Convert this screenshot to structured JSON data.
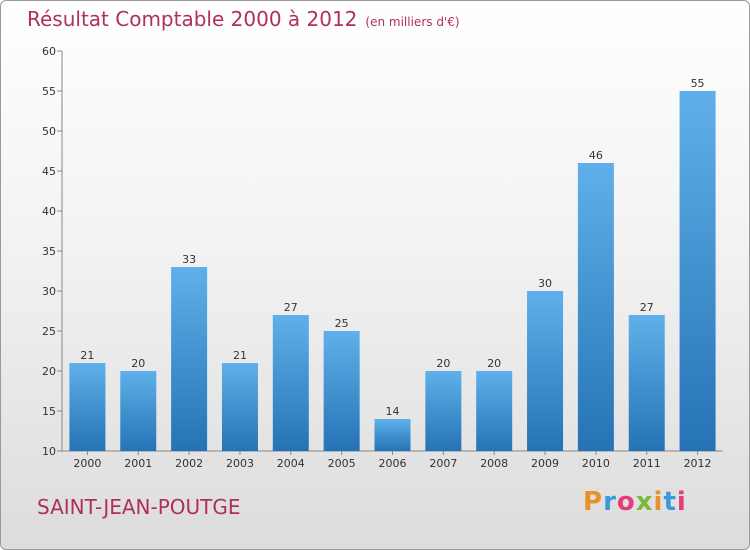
{
  "header": {
    "title": "Résultat Comptable 2000 à 2012",
    "subtitle": "(en milliers d'€)"
  },
  "footer": {
    "commune": "SAINT-JEAN-POUTGE",
    "logo_text": "Proxiti",
    "logo_colors": [
      "#e8912a",
      "#3a9ad9",
      "#e63c7b",
      "#7db83a",
      "#e8912a",
      "#3a9ad9",
      "#e63c7b"
    ]
  },
  "colors": {
    "title": "#b0305a",
    "bar_light": "#5fb0ea",
    "bar_dark": "#2573b5",
    "grid": "#999999"
  },
  "chart_data": {
    "type": "bar",
    "categories": [
      "2000",
      "2001",
      "2002",
      "2003",
      "2004",
      "2005",
      "2006",
      "2007",
      "2008",
      "2009",
      "2010",
      "2011",
      "2012"
    ],
    "values": [
      21,
      20,
      33,
      21,
      27,
      25,
      14,
      20,
      20,
      30,
      46,
      27,
      55
    ],
    "ylim": [
      10,
      60
    ],
    "yticks": [
      10,
      15,
      20,
      25,
      30,
      35,
      40,
      45,
      50,
      55,
      60
    ],
    "grid": false
  }
}
